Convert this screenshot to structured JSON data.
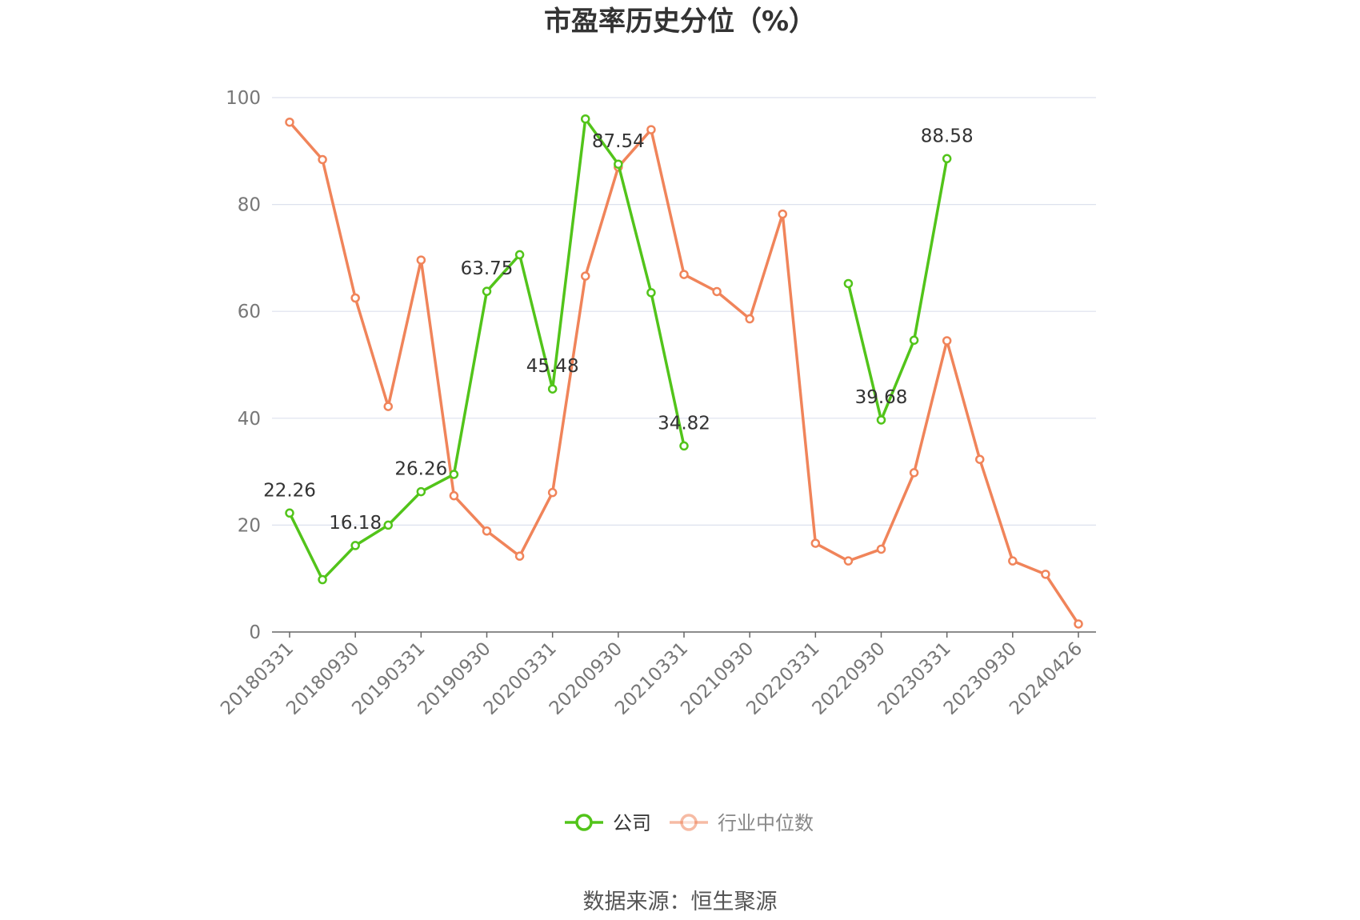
{
  "chart_data": {
    "type": "line",
    "title": "市盈率历史分位（%）",
    "source": "数据来源：恒生聚源",
    "ylim": [
      0,
      100
    ],
    "yticks": [
      0,
      20,
      40,
      60,
      80,
      100
    ],
    "grid": true,
    "legend_position": "bottom-center",
    "x": [
      "20180331",
      "20180630",
      "20180930",
      "20181231",
      "20190331",
      "20190630",
      "20190930",
      "20191231",
      "20200331",
      "20200630",
      "20200930",
      "20201231",
      "20210331",
      "20210630",
      "20210930",
      "20211231",
      "20220331",
      "20220630",
      "20220930",
      "20221231",
      "20230331",
      "20230630",
      "20230930",
      "20231231",
      "20240426"
    ],
    "xtick_labels": [
      "20180331",
      "20180930",
      "20190331",
      "20190930",
      "20200331",
      "20200930",
      "20210331",
      "20210930",
      "20220331",
      "20220930",
      "20230331",
      "20230930",
      "20240426"
    ],
    "series": [
      {
        "name": "公司",
        "color": "#52c41a",
        "values": [
          22.26,
          9.8,
          16.18,
          20.0,
          26.26,
          29.5,
          63.75,
          70.6,
          45.48,
          96.0,
          87.54,
          63.5,
          34.82,
          null,
          null,
          null,
          null,
          65.2,
          39.68,
          54.6,
          88.58,
          null,
          null,
          null,
          null
        ],
        "labels": [
          "22.26",
          "",
          "16.18",
          "",
          "26.26",
          "",
          "63.75",
          "",
          "45.48",
          "",
          "87.54",
          "",
          "34.82",
          "",
          "",
          "",
          "",
          "",
          "39.68",
          "",
          "88.58",
          "",
          "",
          "",
          ""
        ]
      },
      {
        "name": "行业中位数",
        "color": "#f0845a",
        "values": [
          95.4,
          88.4,
          62.5,
          42.2,
          69.6,
          25.5,
          18.9,
          14.2,
          26.1,
          66.6,
          87.0,
          94.0,
          66.9,
          63.7,
          58.6,
          78.2,
          16.6,
          13.3,
          15.5,
          29.8,
          54.5,
          32.3,
          13.3,
          10.8,
          1.5
        ]
      }
    ]
  }
}
